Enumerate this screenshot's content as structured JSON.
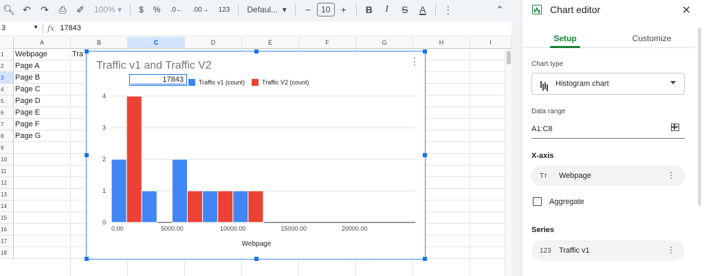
{
  "toolbar": {
    "zoom": "100%",
    "currency": "$",
    "percent": "%",
    "dec_decrease": ".0←",
    "dec_increase": ".00",
    "number_format": "123",
    "font_family": "Defaul...",
    "font_size": "10",
    "bold": "B",
    "italic": "I",
    "strike": "S",
    "text_color": "A"
  },
  "formula_bar": {
    "cell_ref": "3",
    "fx": "fx",
    "value": "17843"
  },
  "grid": {
    "columns": [
      "A",
      "B",
      "C",
      "D",
      "E",
      "F",
      "G",
      "H",
      "I"
    ],
    "selected_column": "C",
    "rows": [
      "1",
      "2",
      "3",
      "4",
      "5",
      "6",
      "7",
      "8",
      "9",
      "10",
      "11",
      "12",
      "13",
      "14",
      "15",
      "16",
      "17",
      "18"
    ],
    "col_a": [
      "Webpage",
      "Page A",
      "Page B",
      "Page C",
      "Page D",
      "Page E",
      "Page F",
      "Page G"
    ],
    "b1": "Tra"
  },
  "chart": {
    "legend_edit_value": "17843",
    "menu": "⋮"
  },
  "chart_data": {
    "type": "bar",
    "title": "Traffic v1 and Traffic V2",
    "xlabel": "Webpage",
    "ylabel": "",
    "xlim": [
      0,
      25000
    ],
    "ylim": [
      0,
      4
    ],
    "x_ticks": [
      "0.00",
      "5000.00",
      "10000.00",
      "15000.00",
      "20000.00"
    ],
    "y_ticks": [
      "0",
      "1",
      "2",
      "3",
      "4"
    ],
    "legend_position": "top",
    "grid": true,
    "series": [
      {
        "name": "Traffic v1 (count)",
        "color": "#4285f4"
      },
      {
        "name": "Traffic V2 (count)",
        "color": "#ea4335"
      }
    ],
    "bins": [
      {
        "x0": 0,
        "x1": 1250,
        "series": 0,
        "count": 2
      },
      {
        "x0": 1250,
        "x1": 2500,
        "series": 1,
        "count": 4
      },
      {
        "x0": 2500,
        "x1": 3750,
        "series": 0,
        "count": 1
      },
      {
        "x0": 5000,
        "x1": 6250,
        "series": 0,
        "count": 2
      },
      {
        "x0": 6250,
        "x1": 7500,
        "series": 1,
        "count": 1
      },
      {
        "x0": 7500,
        "x1": 8750,
        "series": 0,
        "count": 1
      },
      {
        "x0": 8750,
        "x1": 10000,
        "series": 1,
        "count": 1
      },
      {
        "x0": 10000,
        "x1": 11250,
        "series": 0,
        "count": 1
      },
      {
        "x0": 11250,
        "x1": 12500,
        "series": 1,
        "count": 1
      }
    ]
  },
  "panel": {
    "title": "Chart editor",
    "close": "✕",
    "tabs": [
      "Setup",
      "Customize"
    ],
    "chart_type_label": "Chart type",
    "chart_type": "Histogram chart",
    "data_range_label": "Data range",
    "data_range": "A1:C8",
    "xaxis_label": "X-axis",
    "xaxis_icon": "Tт",
    "xaxis_value": "Webpage",
    "aggregate_label": "Aggregate",
    "series_label": "Series",
    "series_icon": "123",
    "series_value": "Traffic v1",
    "kebab": "⋮"
  }
}
